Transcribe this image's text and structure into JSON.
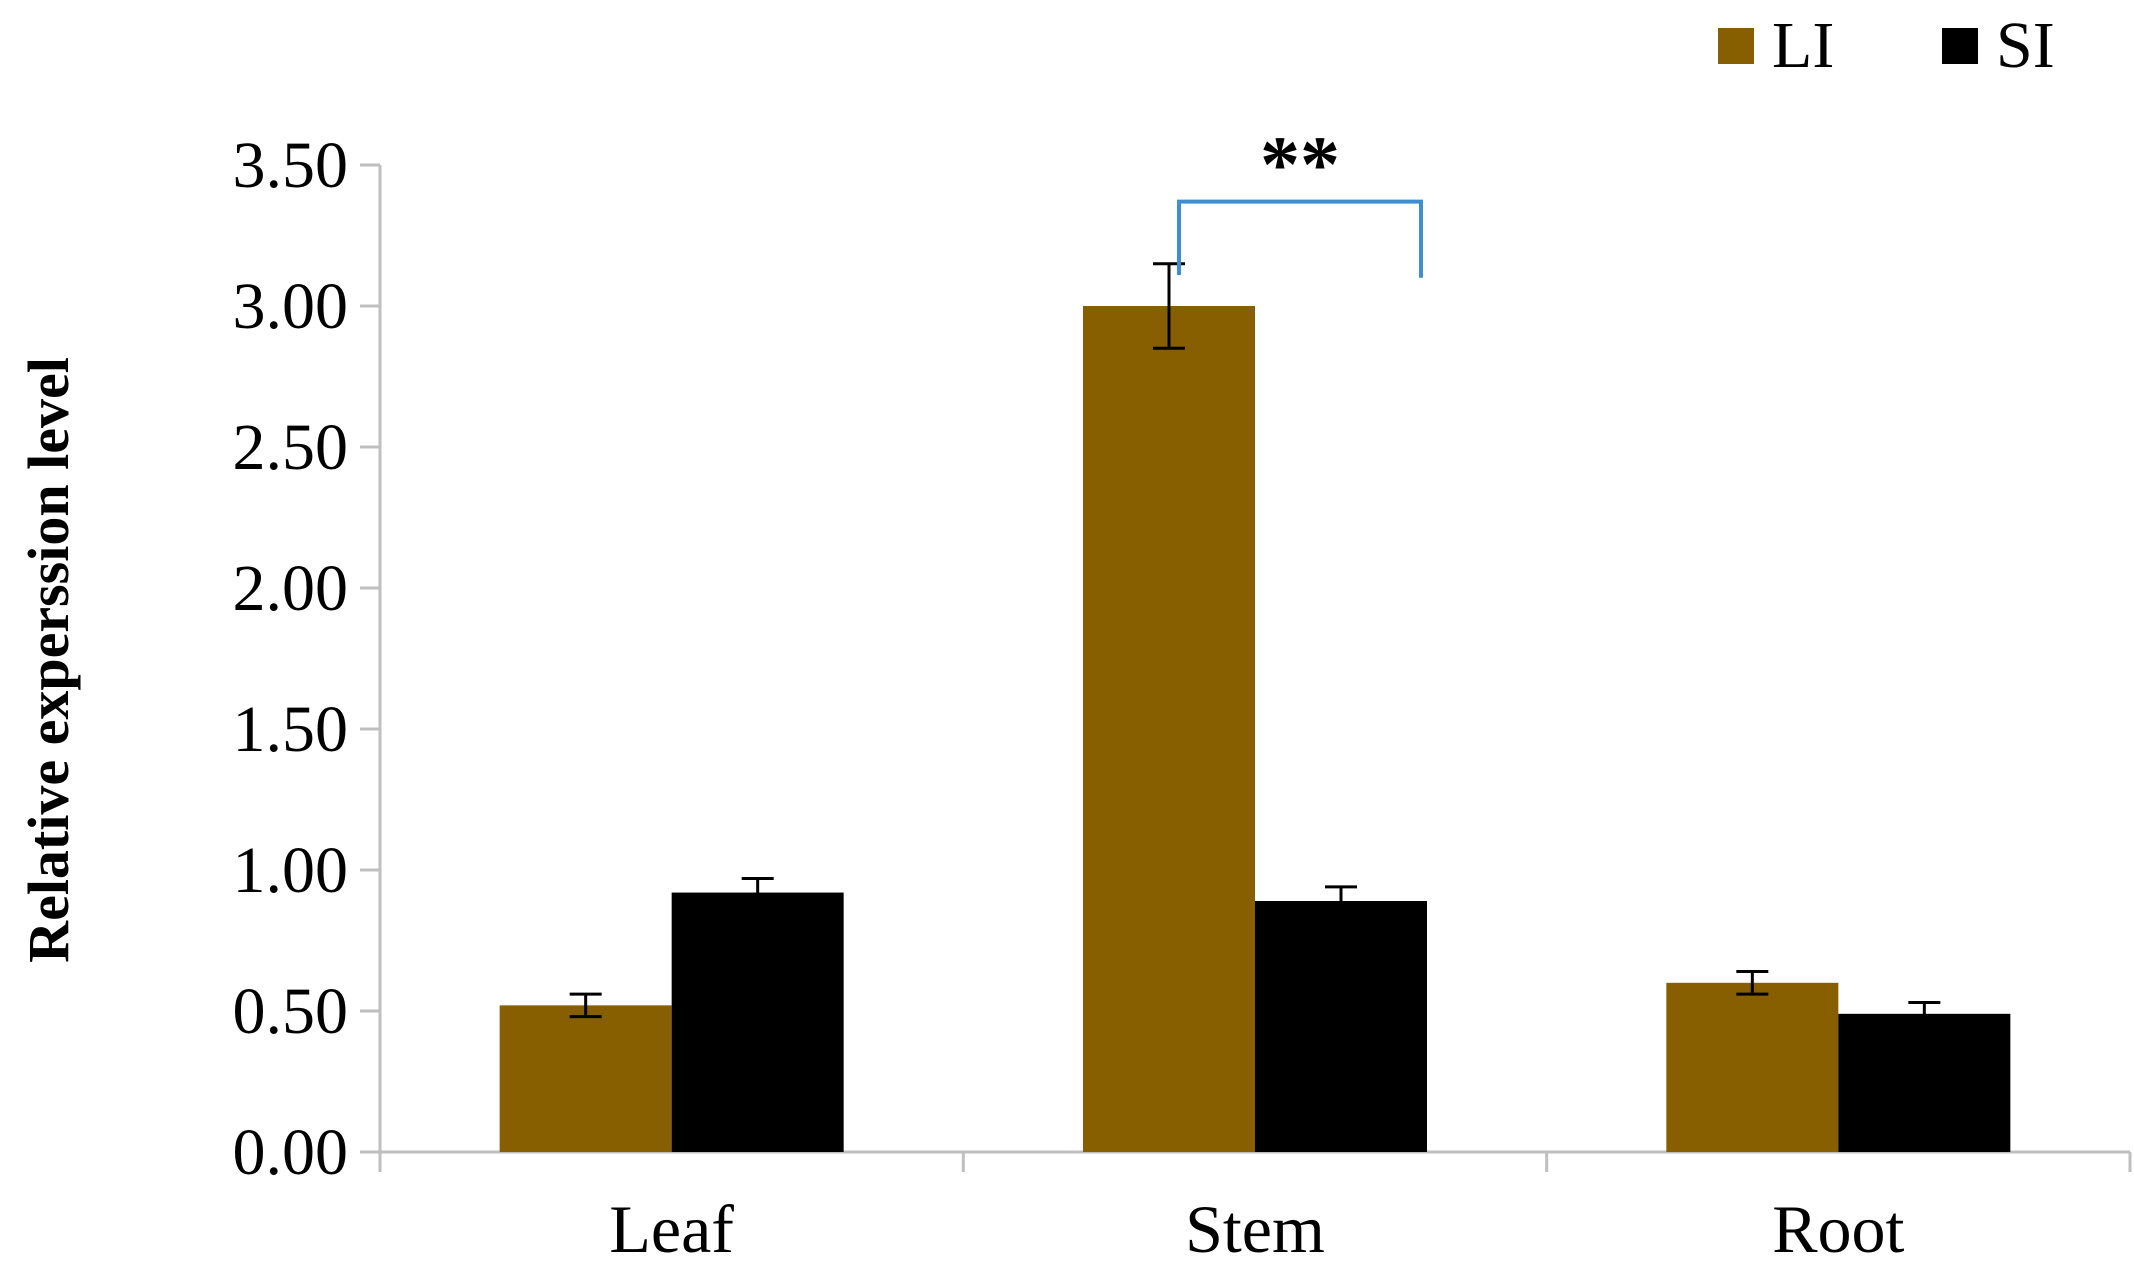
{
  "chart_data": {
    "type": "bar",
    "categories": [
      "Leaf",
      "Stem",
      "Root"
    ],
    "series": [
      {
        "name": "LI",
        "values": [
          0.52,
          3.0,
          0.6
        ],
        "errors": [
          0.04,
          0.15,
          0.04
        ]
      },
      {
        "name": "SI",
        "values": [
          0.92,
          0.89,
          0.49
        ],
        "errors": [
          0.05,
          0.05,
          0.04
        ]
      }
    ],
    "title": "",
    "xlabel": "",
    "ylabel": "Relative experssion level",
    "ylim": [
      0,
      3.5
    ],
    "yticks": [
      "0.00",
      "0.50",
      "1.00",
      "1.50",
      "2.00",
      "2.50",
      "3.00",
      "3.50"
    ],
    "ytick_values": [
      0,
      0.5,
      1.0,
      1.5,
      2.0,
      2.5,
      3.0,
      3.5
    ],
    "grid": false,
    "legend_position": "top-right",
    "colors": {
      "LI": "#875F00",
      "SI": "#000000",
      "axis": "#BFBFBF",
      "bracket": "#3E8ED0"
    },
    "annotations": [
      {
        "text": "**",
        "category": "Stem",
        "from_series": "LI",
        "to_series": "SI",
        "y": 3.15
      }
    ]
  }
}
